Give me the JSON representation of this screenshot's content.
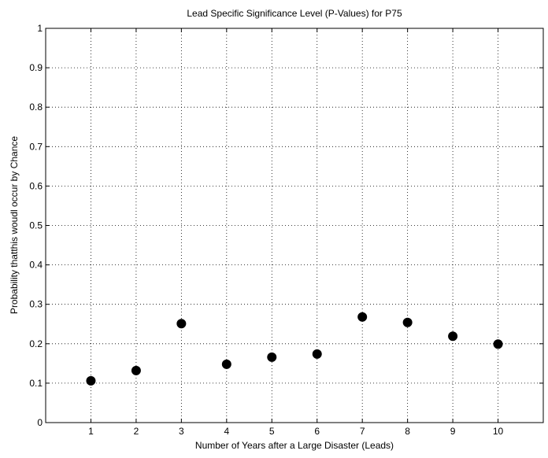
{
  "chart_data": {
    "type": "scatter",
    "title": "Lead Specific Significance Level (P-Values) for P75",
    "xlabel": "Number of Years after a Large Disaster (Leads)",
    "ylabel": "Probability thatthis woudl occur by Chance",
    "xlim": [
      0,
      11
    ],
    "ylim": [
      0,
      1
    ],
    "xticks": [
      1,
      2,
      3,
      4,
      5,
      6,
      7,
      8,
      9,
      10
    ],
    "yticks": [
      0,
      0.1,
      0.2,
      0.3,
      0.4,
      0.5,
      0.6,
      0.7,
      0.8,
      0.9,
      1
    ],
    "ytick_labels": [
      "0",
      "0.1",
      "0.2",
      "0.3",
      "0.4",
      "0.5",
      "0.6",
      "0.7",
      "0.8",
      "0.9",
      "1"
    ],
    "grid": true,
    "grid_style": "dotted",
    "marker_color": "#000000",
    "points": [
      {
        "x": 1,
        "y": 0.106
      },
      {
        "x": 2,
        "y": 0.132
      },
      {
        "x": 3,
        "y": 0.251
      },
      {
        "x": 4,
        "y": 0.148
      },
      {
        "x": 5,
        "y": 0.166
      },
      {
        "x": 6,
        "y": 0.174
      },
      {
        "x": 7,
        "y": 0.268
      },
      {
        "x": 8,
        "y": 0.254
      },
      {
        "x": 9,
        "y": 0.219
      },
      {
        "x": 10,
        "y": 0.199
      }
    ]
  }
}
